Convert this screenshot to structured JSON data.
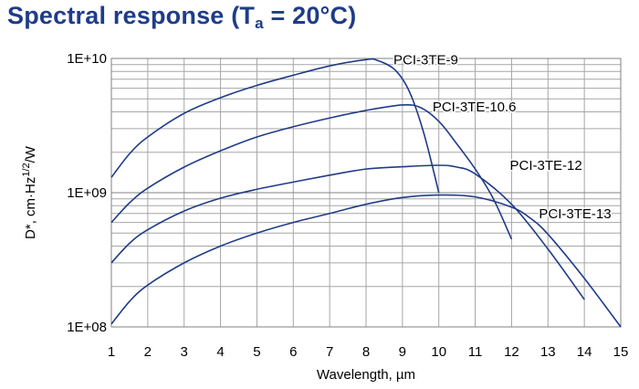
{
  "title": {
    "main": "Spectral response (T",
    "subscript": "a",
    "suffix": " = 20°C)"
  },
  "chart_data": {
    "type": "line",
    "title": "Spectral response (Ta = 20°C)",
    "xlabel": "Wavelength, µm",
    "ylabel": {
      "prefix": "D*, cm·Hz",
      "superscript": "1/2",
      "suffix": "/W"
    },
    "xlim": [
      1,
      15
    ],
    "ylim": [
      100000000.0,
      10000000000.0
    ],
    "yscale": "log",
    "grid": true,
    "x_ticks": [
      "1",
      "2",
      "3",
      "4",
      "5",
      "6",
      "7",
      "8",
      "9",
      "10",
      "11",
      "12",
      "13",
      "14",
      "15"
    ],
    "y_ticks": [
      {
        "value": 100000000.0,
        "label": "1E+08"
      },
      {
        "value": 1000000000.0,
        "label": "1E+09"
      },
      {
        "value": 10000000000.0,
        "label": "1E+10"
      }
    ],
    "line_color": "#1f3c88",
    "series": [
      {
        "name": "PCI-3TE-9",
        "points": [
          [
            1,
            1300000000.0
          ],
          [
            1.5,
            1950000000.0
          ],
          [
            2,
            2600000000.0
          ],
          [
            3,
            3900000000.0
          ],
          [
            4,
            5100000000.0
          ],
          [
            5,
            6300000000.0
          ],
          [
            6,
            7500000000.0
          ],
          [
            7,
            8800000000.0
          ],
          [
            8,
            9800000000.0
          ],
          [
            8.3,
            9700000000.0
          ],
          [
            8.8,
            8200000000.0
          ],
          [
            9.2,
            5600000000.0
          ],
          [
            9.6,
            2700000000.0
          ],
          [
            10,
            1000000000.0
          ]
        ],
        "label_at": [
          8.0,
          9800000000.0
        ]
      },
      {
        "name": "PCI-3TE-10.6",
        "points": [
          [
            1,
            600000000.0
          ],
          [
            1.5,
            840000000.0
          ],
          [
            2,
            1080000000.0
          ],
          [
            3,
            1550000000.0
          ],
          [
            4,
            2050000000.0
          ],
          [
            5,
            2600000000.0
          ],
          [
            6,
            3100000000.0
          ],
          [
            7,
            3600000000.0
          ],
          [
            8,
            4100000000.0
          ],
          [
            9,
            4500000000.0
          ],
          [
            9.5,
            4300000000.0
          ],
          [
            10,
            3400000000.0
          ],
          [
            10.5,
            2300000000.0
          ],
          [
            11,
            1500000000.0
          ],
          [
            11.5,
            900000000.0
          ],
          [
            12,
            450000000.0
          ]
        ],
        "label_at": [
          9.3,
          4500000000.0
        ]
      },
      {
        "name": "PCI-3TE-12",
        "points": [
          [
            1,
            300000000.0
          ],
          [
            1.5,
            420000000.0
          ],
          [
            2,
            530000000.0
          ],
          [
            3,
            730000000.0
          ],
          [
            4,
            910000000.0
          ],
          [
            5,
            1060000000.0
          ],
          [
            6,
            1200000000.0
          ],
          [
            7,
            1350000000.0
          ],
          [
            8,
            1500000000.0
          ],
          [
            9,
            1560000000.0
          ],
          [
            10,
            1600000000.0
          ],
          [
            10.5,
            1550000000.0
          ],
          [
            11,
            1380000000.0
          ],
          [
            12,
            820000000.0
          ],
          [
            13,
            380000000.0
          ],
          [
            14,
            160000000.0
          ]
        ],
        "label_at": [
          11.4,
          1600000000.0
        ]
      },
      {
        "name": "PCI-3TE-13",
        "points": [
          [
            1,
            105000000.0
          ],
          [
            1.5,
            155000000.0
          ],
          [
            2,
            205000000.0
          ],
          [
            3,
            300000000.0
          ],
          [
            4,
            400000000.0
          ],
          [
            5,
            500000000.0
          ],
          [
            6,
            600000000.0
          ],
          [
            7,
            700000000.0
          ],
          [
            8,
            820000000.0
          ],
          [
            9,
            920000000.0
          ],
          [
            10,
            960000000.0
          ],
          [
            11,
            930000000.0
          ],
          [
            12,
            780000000.0
          ],
          [
            12.5,
            650000000.0
          ],
          [
            13,
            490000000.0
          ],
          [
            14,
            230000000.0
          ],
          [
            15,
            100000000.0
          ]
        ],
        "label_at": [
          12.3,
          700000000.0
        ]
      }
    ]
  }
}
